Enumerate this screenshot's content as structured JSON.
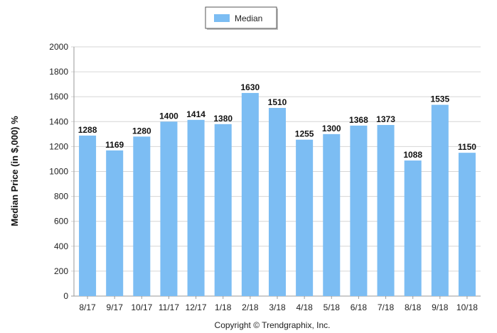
{
  "chart_data": {
    "type": "bar",
    "categories": [
      "8/17",
      "9/17",
      "10/17",
      "11/17",
      "12/17",
      "1/18",
      "2/18",
      "3/18",
      "4/18",
      "5/18",
      "6/18",
      "7/18",
      "8/18",
      "9/18",
      "10/18"
    ],
    "series": [
      {
        "name": "Median",
        "values": [
          1288,
          1169,
          1280,
          1400,
          1414,
          1380,
          1630,
          1510,
          1255,
          1300,
          1368,
          1373,
          1088,
          1535,
          1150
        ],
        "color": "#7cbdf3"
      }
    ],
    "ylabel": "Median Price (in $,000) %",
    "xlabel": "",
    "ylim": [
      0,
      2000
    ],
    "yticks": [
      0,
      200,
      400,
      600,
      800,
      1000,
      1200,
      1400,
      1600,
      1800,
      2000
    ],
    "grid": true,
    "legend_position": "top-center",
    "data_labels": true
  },
  "footer": {
    "copyright": "Copyright © Trendgraphix, Inc."
  }
}
